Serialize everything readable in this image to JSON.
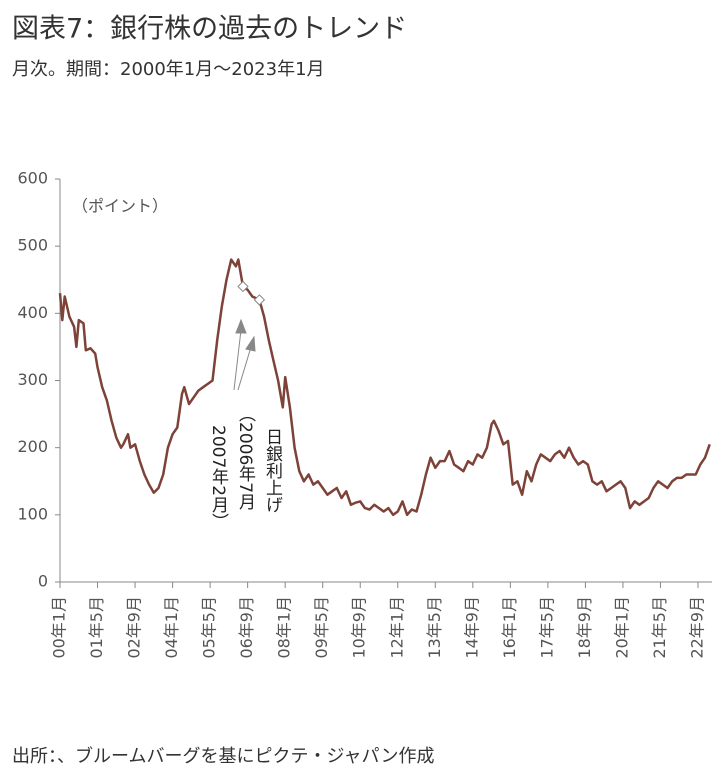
{
  "chart_data": {
    "type": "line",
    "title": "図表7：銀行株の過去のトレンド",
    "subtitle": "月次。期間：2000年1月～2023年1月",
    "y_label": "（ポイント）",
    "source": "出所：、ブルームバーグを基にピクテ・ジャパン作成",
    "annotations": [
      "日銀利上げ",
      "（2006年7月",
      "2007年2月）"
    ],
    "markers": [
      {
        "x": 78,
        "value": 440
      },
      {
        "x": 85,
        "value": 420
      }
    ],
    "xlim": [
      0,
      277
    ],
    "ylim": [
      0,
      600
    ],
    "yticks": [
      0,
      100,
      200,
      300,
      400,
      500,
      600
    ],
    "xticks": [
      {
        "value": 0,
        "label": "00年1月"
      },
      {
        "value": 16,
        "label": "01年5月"
      },
      {
        "value": 32,
        "label": "02年9月"
      },
      {
        "value": 48,
        "label": "04年1月"
      },
      {
        "value": 64,
        "label": "05年5月"
      },
      {
        "value": 80,
        "label": "06年9月"
      },
      {
        "value": 96,
        "label": "08年1月"
      },
      {
        "value": 112,
        "label": "09年5月"
      },
      {
        "value": 128,
        "label": "10年9月"
      },
      {
        "value": 144,
        "label": "12年1月"
      },
      {
        "value": 160,
        "label": "13年5月"
      },
      {
        "value": 176,
        "label": "14年9月"
      },
      {
        "value": 192,
        "label": "16年1月"
      },
      {
        "value": 208,
        "label": "17年5月"
      },
      {
        "value": 224,
        "label": "18年9月"
      },
      {
        "value": 240,
        "label": "20年1月"
      },
      {
        "value": 256,
        "label": "21年5月"
      },
      {
        "value": 272,
        "label": "22年9月"
      }
    ],
    "series": [
      {
        "color": "#7d4238",
        "x": [
          0,
          1,
          2,
          4,
          6,
          7,
          8,
          10,
          11,
          13,
          15,
          16,
          18,
          20,
          22,
          24,
          26,
          27,
          29,
          30,
          32,
          34,
          36,
          38,
          40,
          42,
          44,
          46,
          48,
          50,
          52,
          53,
          55,
          57,
          59,
          61,
          63,
          65,
          67,
          69,
          71,
          73,
          75,
          76,
          78,
          80,
          82,
          85,
          87,
          89,
          91,
          93,
          95,
          96,
          98,
          100,
          102,
          104,
          106,
          108,
          110,
          112,
          114,
          116,
          118,
          120,
          122,
          124,
          126,
          128,
          130,
          132,
          134,
          136,
          138,
          140,
          142,
          144,
          146,
          148,
          150,
          152,
          154,
          156,
          158,
          160,
          162,
          164,
          166,
          168,
          170,
          172,
          174,
          176,
          178,
          180,
          182,
          184,
          185,
          187,
          189,
          191,
          193,
          195,
          197,
          199,
          201,
          203,
          205,
          207,
          209,
          211,
          213,
          215,
          217,
          219,
          221,
          223,
          225,
          227,
          229,
          231,
          233,
          235,
          237,
          239,
          241,
          243,
          245,
          247,
          249,
          251,
          253,
          255,
          257,
          259,
          261,
          263,
          265,
          267,
          269,
          271,
          273,
          275,
          277
        ],
        "values": [
          430,
          390,
          425,
          395,
          380,
          350,
          390,
          385,
          345,
          348,
          340,
          320,
          290,
          270,
          240,
          215,
          200,
          205,
          220,
          200,
          205,
          180,
          160,
          145,
          133,
          140,
          160,
          200,
          220,
          230,
          280,
          290,
          265,
          275,
          285,
          290,
          295,
          300,
          360,
          410,
          450,
          480,
          470,
          480,
          440,
          435,
          425,
          420,
          395,
          360,
          330,
          300,
          260,
          305,
          260,
          200,
          165,
          150,
          160,
          145,
          150,
          140,
          130,
          135,
          140,
          125,
          135,
          115,
          118,
          120,
          110,
          108,
          115,
          110,
          105,
          110,
          100,
          105,
          120,
          100,
          108,
          105,
          130,
          160,
          185,
          170,
          180,
          180,
          195,
          175,
          170,
          165,
          180,
          175,
          190,
          185,
          200,
          235,
          240,
          225,
          205,
          210,
          145,
          150,
          130,
          165,
          150,
          175,
          190,
          185,
          180,
          190,
          195,
          185,
          200,
          185,
          175,
          180,
          175,
          150,
          145,
          150,
          135,
          140,
          145,
          150,
          140,
          110,
          120,
          115,
          120,
          125,
          140,
          150,
          145,
          140,
          150,
          155,
          155,
          160,
          160,
          160,
          175,
          185,
          205
        ]
      }
    ]
  }
}
